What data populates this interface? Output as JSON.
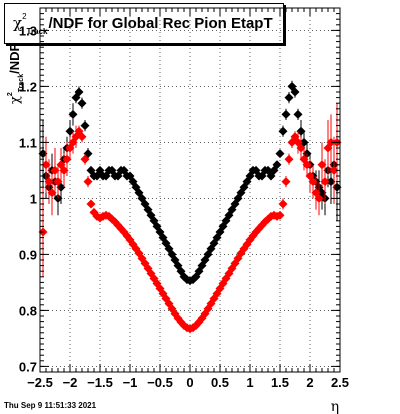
{
  "title": {
    "symbol": "χ",
    "superscript": "2",
    "subscript": "Track",
    "rest": "/NDF for Global Rec Pion EtapT"
  },
  "timestamp": "Thu Sep  9 11:51:33 2021",
  "chart_data": {
    "type": "scatter",
    "title": "χ²_Track/NDF for Global Rec Pion EtapT",
    "xlabel": "η",
    "ylabel": "χ²_Track/NDF",
    "xlim": [
      -2.5,
      2.5
    ],
    "ylim": [
      0.69,
      1.34
    ],
    "xticks": [
      -2.5,
      -2,
      -1.5,
      -1,
      -0.5,
      0,
      0.5,
      1,
      1.5,
      2,
      2.5
    ],
    "xtick_labels": [
      "−2.5",
      "−2",
      "−1.5",
      "−1",
      "−0.5",
      "0",
      "0.5",
      "1",
      "1.5",
      "2",
      "2.5"
    ],
    "yticks": [
      0.7,
      0.8,
      0.9,
      1.0,
      1.1,
      1.2,
      1.3
    ],
    "ytick_labels": [
      "0.7",
      "0.8",
      "0.9",
      "1",
      "1.1",
      "1.2",
      "1.3"
    ],
    "grid": true,
    "colors": {
      "black_series": "#000000",
      "red_series": "#ff0000"
    },
    "series": [
      {
        "color": "#000000",
        "points": [
          [
            -2.45,
            1.08,
            0.06
          ],
          [
            -2.4,
            1.04,
            0.04
          ],
          [
            -2.35,
            1.02,
            0.03
          ],
          [
            -2.3,
            1.05,
            0.03
          ],
          [
            -2.25,
            1.03,
            0.03
          ],
          [
            -2.2,
            1.0,
            0.03
          ],
          [
            -2.15,
            1.02,
            0.03
          ],
          [
            -2.1,
            1.07,
            0.02
          ],
          [
            -2.05,
            1.09,
            0.02
          ],
          [
            -2.0,
            1.12,
            0.02
          ],
          [
            -1.95,
            1.15,
            0.02
          ],
          [
            -1.9,
            1.18,
            0.01
          ],
          [
            -1.85,
            1.19,
            0.01
          ],
          [
            -1.8,
            1.17,
            0.01
          ],
          [
            -1.75,
            1.13,
            0.01
          ],
          [
            -1.7,
            1.08,
            0.01
          ],
          [
            -1.65,
            1.05,
            0
          ],
          [
            -1.6,
            1.04,
            0
          ],
          [
            -1.55,
            1.04,
            0
          ],
          [
            -1.5,
            1.05,
            0
          ],
          [
            -1.45,
            1.04,
            0
          ],
          [
            -1.4,
            1.04,
            0
          ],
          [
            -1.35,
            1.05,
            0
          ],
          [
            -1.3,
            1.05,
            0
          ],
          [
            -1.25,
            1.04,
            0
          ],
          [
            -1.2,
            1.04,
            0
          ],
          [
            -1.15,
            1.05,
            0
          ],
          [
            -1.1,
            1.05,
            0
          ],
          [
            -1.05,
            1.04,
            0
          ],
          [
            -1.0,
            1.04,
            0
          ],
          [
            -0.95,
            1.03,
            0
          ],
          [
            -0.9,
            1.02,
            0
          ],
          [
            -0.85,
            1.01,
            0
          ],
          [
            -0.8,
            1.0,
            0
          ],
          [
            -0.75,
            0.99,
            0
          ],
          [
            -0.7,
            0.98,
            0
          ],
          [
            -0.65,
            0.97,
            0
          ],
          [
            -0.6,
            0.96,
            0
          ],
          [
            -0.55,
            0.95,
            0
          ],
          [
            -0.5,
            0.94,
            0
          ],
          [
            -0.45,
            0.93,
            0
          ],
          [
            -0.4,
            0.92,
            0
          ],
          [
            -0.35,
            0.91,
            0
          ],
          [
            -0.3,
            0.9,
            0
          ],
          [
            -0.25,
            0.89,
            0
          ],
          [
            -0.2,
            0.88,
            0
          ],
          [
            -0.15,
            0.87,
            0
          ],
          [
            -0.1,
            0.86,
            0
          ],
          [
            -0.05,
            0.855,
            0
          ],
          [
            0.0,
            0.853,
            0
          ],
          [
            0.05,
            0.855,
            0
          ],
          [
            0.1,
            0.86,
            0
          ],
          [
            0.15,
            0.87,
            0
          ],
          [
            0.2,
            0.88,
            0
          ],
          [
            0.25,
            0.89,
            0
          ],
          [
            0.3,
            0.9,
            0
          ],
          [
            0.35,
            0.91,
            0
          ],
          [
            0.4,
            0.92,
            0
          ],
          [
            0.45,
            0.93,
            0
          ],
          [
            0.5,
            0.94,
            0
          ],
          [
            0.55,
            0.95,
            0
          ],
          [
            0.6,
            0.96,
            0
          ],
          [
            0.65,
            0.97,
            0
          ],
          [
            0.7,
            0.98,
            0
          ],
          [
            0.75,
            0.99,
            0
          ],
          [
            0.8,
            1.0,
            0
          ],
          [
            0.85,
            1.01,
            0
          ],
          [
            0.9,
            1.02,
            0
          ],
          [
            0.95,
            1.03,
            0
          ],
          [
            1.0,
            1.04,
            0
          ],
          [
            1.05,
            1.05,
            0
          ],
          [
            1.1,
            1.05,
            0
          ],
          [
            1.15,
            1.04,
            0
          ],
          [
            1.2,
            1.04,
            0
          ],
          [
            1.25,
            1.05,
            0
          ],
          [
            1.3,
            1.05,
            0
          ],
          [
            1.35,
            1.04,
            0
          ],
          [
            1.4,
            1.05,
            0
          ],
          [
            1.45,
            1.06,
            0
          ],
          [
            1.5,
            1.08,
            0
          ],
          [
            1.55,
            1.12,
            0.01
          ],
          [
            1.6,
            1.15,
            0.01
          ],
          [
            1.65,
            1.18,
            0.01
          ],
          [
            1.7,
            1.2,
            0.01
          ],
          [
            1.75,
            1.19,
            0.01
          ],
          [
            1.8,
            1.15,
            0.01
          ],
          [
            1.85,
            1.12,
            0.02
          ],
          [
            1.9,
            1.1,
            0.02
          ],
          [
            1.95,
            1.08,
            0.02
          ],
          [
            2.0,
            1.06,
            0.02
          ],
          [
            2.05,
            1.04,
            0.02
          ],
          [
            2.1,
            1.03,
            0.02
          ],
          [
            2.15,
            1.02,
            0.03
          ],
          [
            2.2,
            1.01,
            0.03
          ],
          [
            2.25,
            1.0,
            0.03
          ],
          [
            2.3,
            1.05,
            0.03
          ],
          [
            2.35,
            1.03,
            0.04
          ],
          [
            2.4,
            1.06,
            0.04
          ],
          [
            2.45,
            1.02,
            0.06
          ]
        ]
      },
      {
        "color": "#ff0000",
        "points": [
          [
            -2.45,
            0.94,
            0.08
          ],
          [
            -2.4,
            1.06,
            0.05
          ],
          [
            -2.35,
            1.03,
            0.04
          ],
          [
            -2.3,
            1.01,
            0.04
          ],
          [
            -2.25,
            1.05,
            0.04
          ],
          [
            -2.2,
            1.03,
            0.03
          ],
          [
            -2.15,
            1.06,
            0.03
          ],
          [
            -2.1,
            1.05,
            0.03
          ],
          [
            -2.05,
            1.07,
            0.03
          ],
          [
            -2.0,
            1.09,
            0.02
          ],
          [
            -1.95,
            1.1,
            0.02
          ],
          [
            -1.9,
            1.11,
            0.02
          ],
          [
            -1.85,
            1.12,
            0.01
          ],
          [
            -1.8,
            1.11,
            0.01
          ],
          [
            -1.75,
            1.07,
            0.01
          ],
          [
            -1.7,
            1.03,
            0.01
          ],
          [
            -1.65,
            0.99,
            0
          ],
          [
            -1.6,
            0.975,
            0
          ],
          [
            -1.55,
            0.968,
            0
          ],
          [
            -1.5,
            0.965,
            0
          ],
          [
            -1.45,
            0.968,
            0
          ],
          [
            -1.4,
            0.97,
            0
          ],
          [
            -1.35,
            0.968,
            0
          ],
          [
            -1.3,
            0.963,
            0
          ],
          [
            -1.25,
            0.958,
            0
          ],
          [
            -1.2,
            0.952,
            0
          ],
          [
            -1.15,
            0.946,
            0
          ],
          [
            -1.1,
            0.94,
            0
          ],
          [
            -1.05,
            0.933,
            0
          ],
          [
            -1.0,
            0.926,
            0
          ],
          [
            -0.95,
            0.918,
            0
          ],
          [
            -0.9,
            0.91,
            0
          ],
          [
            -0.85,
            0.902,
            0
          ],
          [
            -0.8,
            0.893,
            0
          ],
          [
            -0.75,
            0.884,
            0
          ],
          [
            -0.7,
            0.875,
            0
          ],
          [
            -0.65,
            0.866,
            0
          ],
          [
            -0.6,
            0.857,
            0
          ],
          [
            -0.55,
            0.848,
            0
          ],
          [
            -0.5,
            0.839,
            0
          ],
          [
            -0.45,
            0.83,
            0
          ],
          [
            -0.4,
            0.821,
            0
          ],
          [
            -0.35,
            0.812,
            0
          ],
          [
            -0.3,
            0.803,
            0
          ],
          [
            -0.25,
            0.794,
            0
          ],
          [
            -0.2,
            0.786,
            0
          ],
          [
            -0.15,
            0.779,
            0
          ],
          [
            -0.1,
            0.773,
            0
          ],
          [
            -0.05,
            0.769,
            0
          ],
          [
            0.0,
            0.767,
            0
          ],
          [
            0.05,
            0.769,
            0
          ],
          [
            0.1,
            0.773,
            0
          ],
          [
            0.15,
            0.779,
            0
          ],
          [
            0.2,
            0.786,
            0
          ],
          [
            0.25,
            0.794,
            0
          ],
          [
            0.3,
            0.803,
            0
          ],
          [
            0.35,
            0.812,
            0
          ],
          [
            0.4,
            0.821,
            0
          ],
          [
            0.45,
            0.83,
            0
          ],
          [
            0.5,
            0.839,
            0
          ],
          [
            0.55,
            0.848,
            0
          ],
          [
            0.6,
            0.857,
            0
          ],
          [
            0.65,
            0.866,
            0
          ],
          [
            0.7,
            0.875,
            0
          ],
          [
            0.75,
            0.884,
            0
          ],
          [
            0.8,
            0.893,
            0
          ],
          [
            0.85,
            0.902,
            0
          ],
          [
            0.9,
            0.91,
            0
          ],
          [
            0.95,
            0.918,
            0
          ],
          [
            1.0,
            0.926,
            0
          ],
          [
            1.05,
            0.933,
            0
          ],
          [
            1.1,
            0.94,
            0
          ],
          [
            1.15,
            0.946,
            0
          ],
          [
            1.2,
            0.952,
            0
          ],
          [
            1.25,
            0.958,
            0
          ],
          [
            1.3,
            0.963,
            0
          ],
          [
            1.35,
            0.968,
            0
          ],
          [
            1.4,
            0.97,
            0
          ],
          [
            1.45,
            0.968,
            0
          ],
          [
            1.5,
            0.97,
            0
          ],
          [
            1.55,
            0.99,
            0.01
          ],
          [
            1.6,
            1.03,
            0.01
          ],
          [
            1.65,
            1.07,
            0.01
          ],
          [
            1.7,
            1.1,
            0.01
          ],
          [
            1.75,
            1.11,
            0.01
          ],
          [
            1.8,
            1.1,
            0.02
          ],
          [
            1.85,
            1.09,
            0.02
          ],
          [
            1.9,
            1.07,
            0.02
          ],
          [
            1.95,
            1.06,
            0.02
          ],
          [
            2.0,
            1.04,
            0.03
          ],
          [
            2.05,
            1.03,
            0.03
          ],
          [
            2.1,
            1.01,
            0.03
          ],
          [
            2.15,
            1.0,
            0.03
          ],
          [
            2.2,
            1.06,
            0.04
          ],
          [
            2.25,
            1.03,
            0.04
          ],
          [
            2.3,
            1.09,
            0.05
          ],
          [
            2.35,
            1.1,
            0.05
          ],
          [
            2.4,
            1.05,
            0.06
          ],
          [
            2.45,
            1.1,
            0.07
          ]
        ]
      }
    ]
  }
}
